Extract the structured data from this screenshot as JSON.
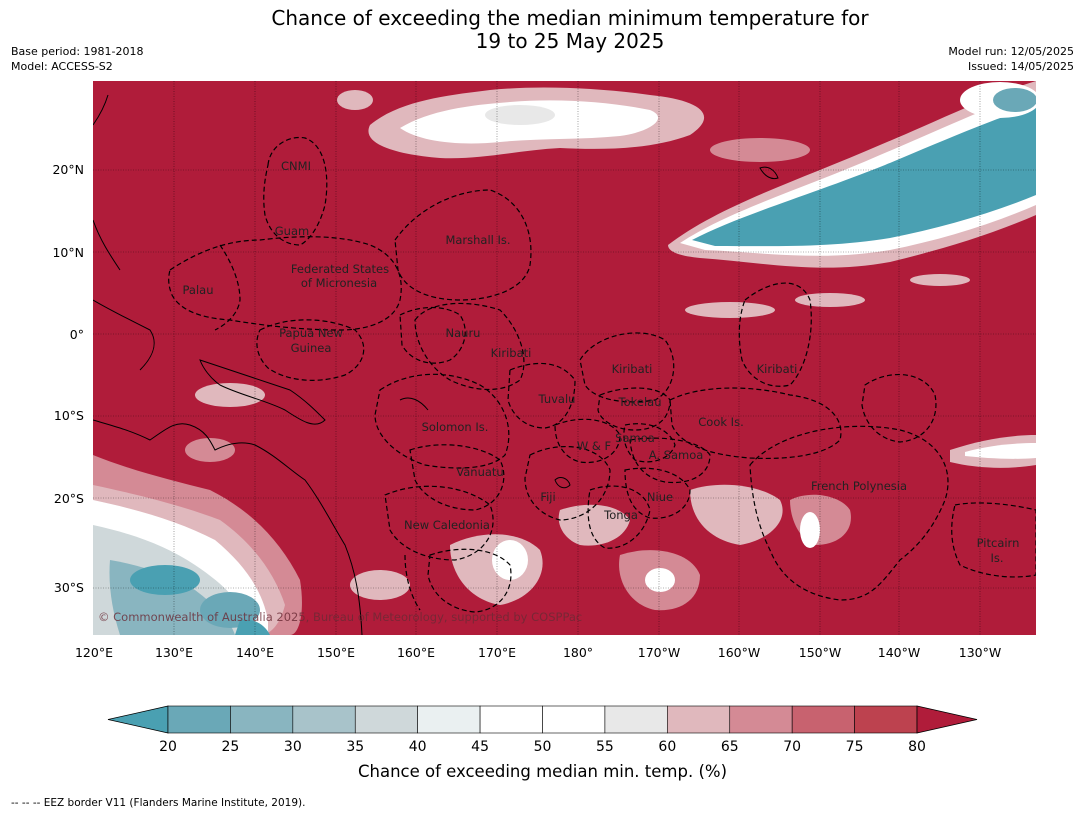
{
  "header": {
    "title_line1": "Chance of exceeding the median minimum temperature for",
    "title_line2": "19 to 25 May 2025",
    "base_period": "Base period: 1981-2018",
    "model": "Model: ACCESS-S2",
    "model_run": "Model run: 12/05/2025",
    "issued": "Issued: 14/05/2025"
  },
  "map": {
    "lat_labels": [
      "20°N",
      "10°N",
      "0°",
      "10°S",
      "20°S",
      "30°S"
    ],
    "lon_labels": [
      "120°E",
      "130°E",
      "140°E",
      "150°E",
      "160°E",
      "170°E",
      "180°",
      "170°W",
      "160°W",
      "150°W",
      "140°W",
      "130°W"
    ],
    "region_labels": [
      {
        "id": "cnmi",
        "text": "CNMI"
      },
      {
        "id": "guam",
        "text": "Guam"
      },
      {
        "id": "marshall",
        "text": "Marshall Is."
      },
      {
        "id": "fsm1",
        "text": "Federated States"
      },
      {
        "id": "fsm2",
        "text": "of Micronesia"
      },
      {
        "id": "palau",
        "text": "Palau"
      },
      {
        "id": "png1",
        "text": "Papua New"
      },
      {
        "id": "png2",
        "text": "Guinea"
      },
      {
        "id": "nauru",
        "text": "Nauru"
      },
      {
        "id": "kiribati1",
        "text": "Kiribati"
      },
      {
        "id": "kiribati2",
        "text": "Kiribati"
      },
      {
        "id": "kiribati3",
        "text": "Kiribati"
      },
      {
        "id": "tuvalu",
        "text": "Tuvalu"
      },
      {
        "id": "tokelau",
        "text": "Tokelau"
      },
      {
        "id": "cook",
        "text": "Cook Is."
      },
      {
        "id": "solomon",
        "text": "Solomon Is."
      },
      {
        "id": "samoa",
        "text": "Samoa"
      },
      {
        "id": "wf",
        "text": "W & F"
      },
      {
        "id": "asamoa",
        "text": "A. Samoa"
      },
      {
        "id": "vanuatu",
        "text": "Vanuatu"
      },
      {
        "id": "fiji",
        "text": "Fiji"
      },
      {
        "id": "niue",
        "text": "Niue"
      },
      {
        "id": "frpoly",
        "text": "French Polynesia"
      },
      {
        "id": "tonga",
        "text": "Tonga"
      },
      {
        "id": "newcal",
        "text": "New Caledonia"
      },
      {
        "id": "pitcairn1",
        "text": "Pitcairn"
      },
      {
        "id": "pitcairn2",
        "text": "Is."
      }
    ],
    "copyright": "© Commonwealth of Australia 2025, Bureau of Meteorology, supported by COSPPac"
  },
  "colorbar": {
    "title": "Chance of exceeding median min. temp. (%)",
    "tick_labels": [
      "20",
      "25",
      "30",
      "35",
      "40",
      "45",
      "50",
      "55",
      "60",
      "65",
      "70",
      "75",
      "80"
    ],
    "colors": [
      "#4aa0b2",
      "#6aa8b7",
      "#89b5c0",
      "#a8c3ca",
      "#cfd8da",
      "#eaf0f1",
      "#ffffff",
      "#ffffff",
      "#e8e8e8",
      "#e0b8bd",
      "#d48a95",
      "#c8626f",
      "#bd424f",
      "#b01c3a"
    ]
  },
  "footnote": "--  --  -- EEZ border V11 (Flanders Marine Institute, 2019)."
}
